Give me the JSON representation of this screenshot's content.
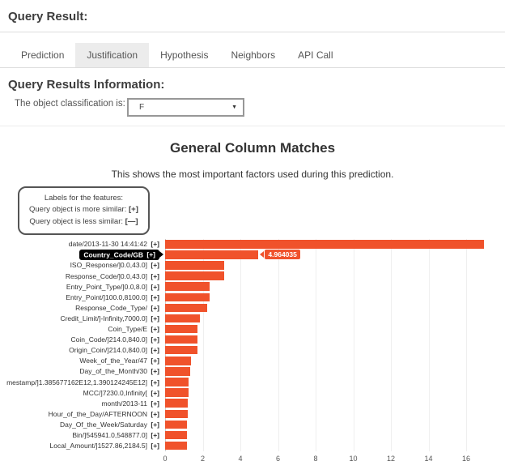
{
  "header": {
    "title": "Query Result:"
  },
  "tabs": [
    {
      "label": "Prediction",
      "active": false
    },
    {
      "label": "Justification",
      "active": true
    },
    {
      "label": "Hypothesis",
      "active": false
    },
    {
      "label": "Neighbors",
      "active": false
    },
    {
      "label": "API Call",
      "active": false
    }
  ],
  "info": {
    "section_title": "Query Results Information:",
    "classification_label": "The object classification is:",
    "classification_value": "F",
    "dropdown_arrow": "▼"
  },
  "legend": {
    "title": "Labels for the features:",
    "more_label": "Query object is more similar:",
    "more_marker": "[+]",
    "less_label": "Query object is less similar:",
    "less_marker": "[—]"
  },
  "chart_data": {
    "type": "bar",
    "orientation": "horizontal",
    "title": "General Column Matches",
    "subtitle": "This shows the most important factors used during this prediction.",
    "bar_color": "#f0522b",
    "categories": [
      "date/2013-11-30 14:41:42",
      "Country_Code/GB",
      "ISO_Response/]0.0,43.0]",
      "Response_Code/]0.0,43.0]",
      "Entry_Point_Type/]0.0,8.0]",
      "Entry_Point/]100.0,8100.0]",
      "Response_Code_Type/",
      "Credit_Limit/]-Infinity,7000.0]",
      "Coin_Type/E",
      "Coin_Code/]214.0,840.0]",
      "Origin_Coin/]214.0,840.0]",
      "Week_of_the_Year/47",
      "Day_of_the_Month/30",
      "mestamp/]1.385677162E12,1.390124245E12]",
      "MCC/]7230.0,Infinity[",
      "month/2013-11",
      "Hour_of_the_Day/AFTERNOON",
      "Day_Of_the_Week/Saturday",
      "Bin/]545941.0,548877.0]",
      "Local_Amount/]1527.86,2184.5]"
    ],
    "marker": "[+]",
    "values": [
      16.95,
      4.964035,
      3.12,
      3.15,
      2.37,
      2.35,
      2.24,
      1.85,
      1.73,
      1.73,
      1.73,
      1.39,
      1.35,
      1.25,
      1.25,
      1.2,
      1.2,
      1.16,
      1.16,
      1.16
    ],
    "highlight_index": 1,
    "highlight_value_label": "4.964035",
    "xticks": [
      0,
      2,
      4,
      6,
      8,
      10,
      12,
      14,
      16
    ],
    "xlim": [
      0,
      17.8
    ],
    "grid": true,
    "legend_position": "none"
  }
}
